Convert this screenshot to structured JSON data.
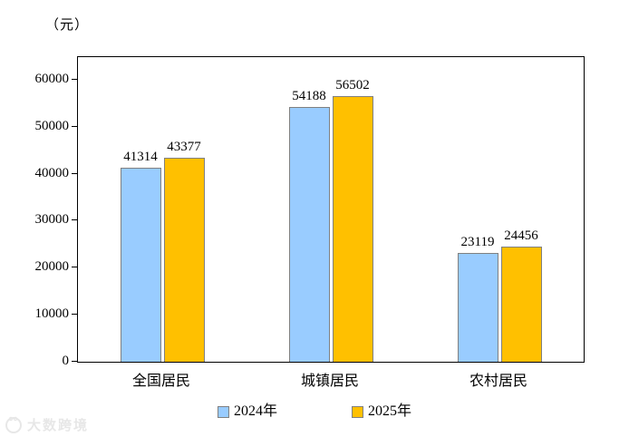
{
  "chart_data": {
    "type": "bar",
    "unit_label": "（元）",
    "categories": [
      "全国居民",
      "城镇居民",
      "农村居民"
    ],
    "series": [
      {
        "name": "2024年",
        "color": "#99CCFF",
        "values": [
          41314,
          54188,
          23119
        ]
      },
      {
        "name": "2025年",
        "color": "#FFC000",
        "values": [
          43377,
          56502,
          24456
        ]
      }
    ],
    "yticks": [
      0,
      10000,
      20000,
      30000,
      40000,
      50000,
      60000
    ],
    "ylim": [
      0,
      64800
    ],
    "grid": false,
    "legend_position": "bottom",
    "bar_border_color": "#808080",
    "axis_color": "#000000"
  },
  "watermark": {
    "text": "大数跨境"
  }
}
